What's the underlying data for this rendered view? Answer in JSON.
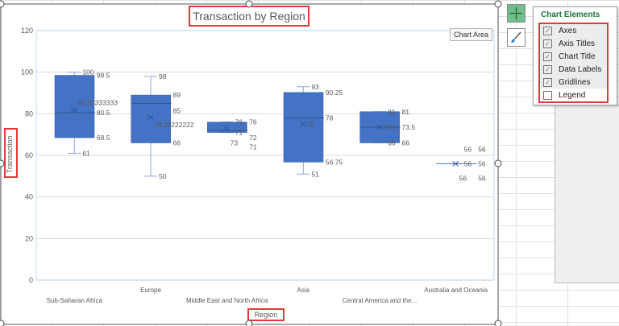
{
  "chart_data": {
    "type": "box",
    "title": "Transaction by Region",
    "xlabel": "Region",
    "ylabel": "Transaction",
    "ylim": [
      0,
      120
    ],
    "yticks": [
      0,
      20,
      40,
      60,
      80,
      100,
      120
    ],
    "grid": true,
    "color": "#4472c4",
    "categories": [
      "Sub-Saharan Africa",
      "Europe",
      "Middle East and North Africa",
      "Asia",
      "Central America and the...",
      "Australia and Oceania"
    ],
    "boxes": [
      {
        "min": 61,
        "q1": 68.5,
        "median": 80.5,
        "q3": 98.5,
        "max": 100,
        "mean": 81.83333333,
        "mean_label": "81.83333333"
      },
      {
        "min": 50,
        "q1": 66,
        "median": 85,
        "q3": 89,
        "max": 98,
        "mean": 78.22222222,
        "mean_label": "78.22222222"
      },
      {
        "min": 71,
        "q1": 71,
        "median": 72,
        "q3": 76,
        "max": 76,
        "mean": 73,
        "mean_label": "73"
      },
      {
        "min": 51,
        "q1": 56.75,
        "median": 78,
        "q3": 90.25,
        "max": 93,
        "mean": 75,
        "mean_label": "75"
      },
      {
        "min": 66,
        "q1": 66,
        "median": 73.5,
        "q3": 81,
        "max": 81,
        "mean": 73.5,
        "mean_label": "73.5"
      },
      {
        "min": 56,
        "q1": 56,
        "median": 56,
        "q3": 56,
        "max": 56,
        "mean": 56,
        "mean_label": "56"
      }
    ]
  },
  "tooltip": "Chart Area",
  "panel": {
    "title": "Chart Elements",
    "items": [
      {
        "label": "Axes",
        "checked": true
      },
      {
        "label": "Axis Titles",
        "checked": true
      },
      {
        "label": "Chart Title",
        "checked": true
      },
      {
        "label": "Data Labels",
        "checked": true
      },
      {
        "label": "Gridlines",
        "checked": true
      },
      {
        "label": "Legend",
        "checked": false
      }
    ]
  }
}
